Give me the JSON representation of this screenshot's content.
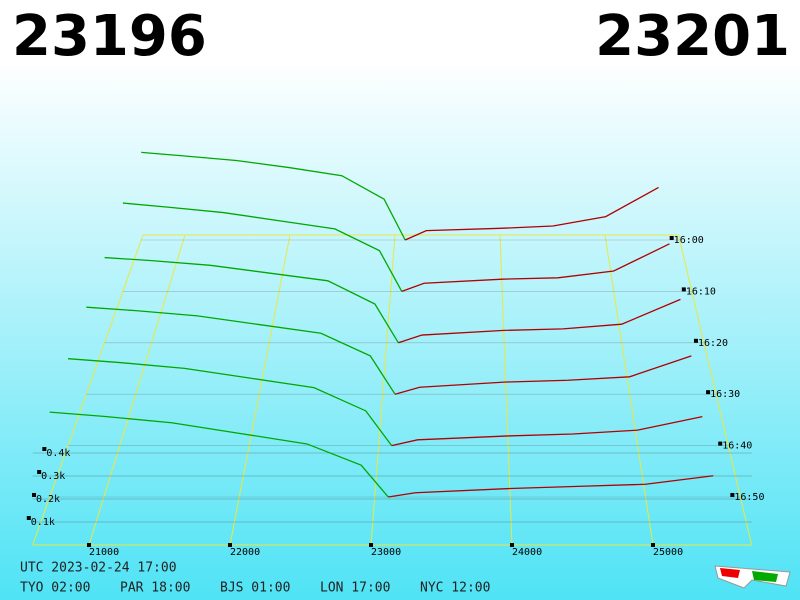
{
  "chart_data": {
    "type": "depth3d",
    "bid_price": "23196",
    "ask_price": "23201",
    "bid_color": "#00a800",
    "ask_color": "#b00000",
    "grid_color": "#e8e840",
    "xlim": [
      20600,
      25700
    ],
    "xticks": [
      21000,
      22000,
      23000,
      24000,
      25000
    ],
    "depth_ticks": [
      {
        "value": 0.1,
        "label": "0.1k"
      },
      {
        "value": 0.2,
        "label": "0.2k"
      },
      {
        "value": 0.3,
        "label": "0.3k"
      },
      {
        "value": 0.4,
        "label": "0.4k"
      }
    ],
    "times": [
      "16:00",
      "16:10",
      "16:20",
      "16:30",
      "16:40",
      "16:50"
    ],
    "bid_prices": [
      20600,
      21000,
      21500,
      22000,
      22500,
      22900,
      23100
    ],
    "ask_prices": [
      23100,
      23300,
      24000,
      24500,
      25000,
      25500
    ],
    "snapshots": [
      {
        "bids": [
          0.75,
          0.72,
          0.68,
          0.62,
          0.55,
          0.35,
          0
        ],
        "asks": [
          0,
          0.08,
          0.1,
          0.12,
          0.2,
          0.45
        ]
      },
      {
        "bids": [
          0.65,
          0.62,
          0.58,
          0.52,
          0.46,
          0.3,
          0
        ],
        "asks": [
          0,
          0.06,
          0.09,
          0.1,
          0.15,
          0.35
        ]
      },
      {
        "bids": [
          0.55,
          0.53,
          0.5,
          0.45,
          0.4,
          0.25,
          0
        ],
        "asks": [
          0,
          0.05,
          0.08,
          0.09,
          0.12,
          0.28
        ]
      },
      {
        "bids": [
          0.5,
          0.48,
          0.45,
          0.4,
          0.35,
          0.22,
          0
        ],
        "asks": [
          0,
          0.04,
          0.07,
          0.08,
          0.1,
          0.22
        ]
      },
      {
        "bids": [
          0.45,
          0.43,
          0.4,
          0.35,
          0.3,
          0.18,
          0
        ],
        "asks": [
          0,
          0.03,
          0.05,
          0.06,
          0.08,
          0.15
        ]
      },
      {
        "bids": [
          0.4,
          0.38,
          0.35,
          0.3,
          0.25,
          0.15,
          0
        ],
        "asks": [
          0,
          0.02,
          0.04,
          0.05,
          0.06,
          0.1
        ]
      }
    ],
    "utc": "UTC 2023-02-24 17:00",
    "cities": [
      "TYO 02:00",
      "PAR 18:00",
      "BJS 01:00",
      "LON 17:00",
      "NYC 12:00"
    ]
  }
}
